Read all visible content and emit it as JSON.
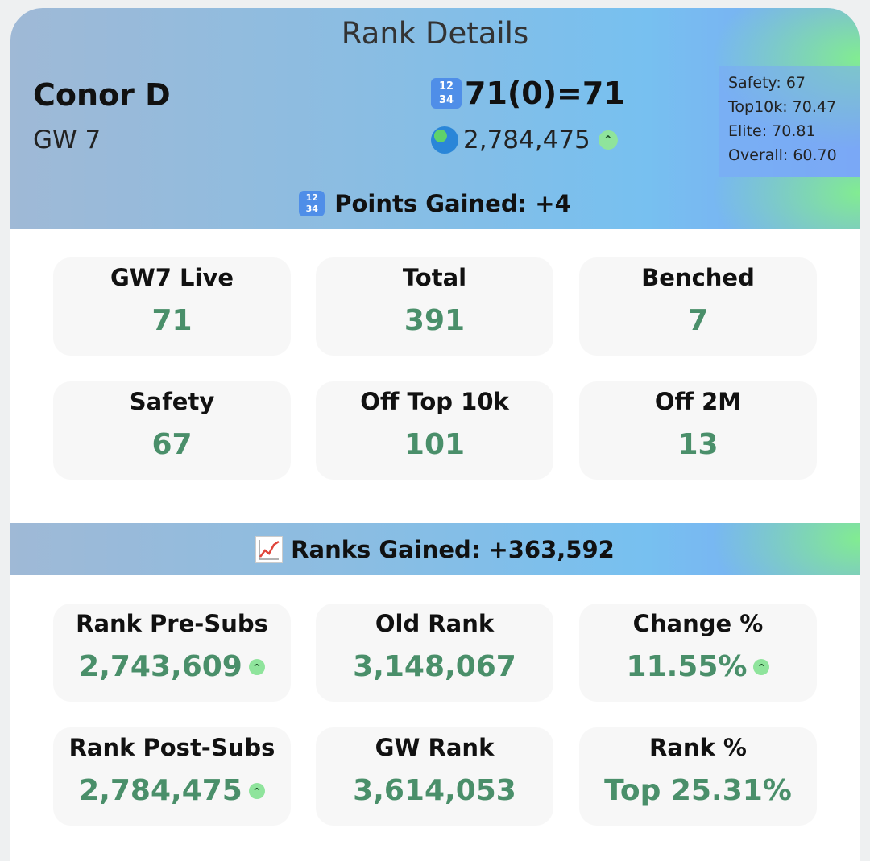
{
  "header": {
    "title": "Rank Details",
    "manager_name": "Conor D",
    "gameweek": "GW 7",
    "score": "71(0)=71",
    "overall_rank": "2,784,475",
    "thresholds": [
      {
        "label": "Safety: 67"
      },
      {
        "label": "Top10k: 70.47"
      },
      {
        "label": "Elite: 70.81"
      },
      {
        "label": "Overall: 60.70"
      }
    ]
  },
  "points_bar": {
    "label": "Points Gained: +4"
  },
  "points_tiles": [
    {
      "label": "GW7 Live",
      "value": "71"
    },
    {
      "label": "Total",
      "value": "391"
    },
    {
      "label": "Benched",
      "value": "7"
    },
    {
      "label": "Safety",
      "value": "67"
    },
    {
      "label": "Off Top 10k",
      "value": "101"
    },
    {
      "label": "Off 2M",
      "value": "13"
    }
  ],
  "ranks_bar": {
    "label": "Ranks Gained: +363,592"
  },
  "rank_tiles": [
    {
      "label": "Rank Pre-Subs",
      "value": "2,743,609"
    },
    {
      "label": "Old Rank",
      "value": "3,148,067"
    },
    {
      "label": "Change %",
      "value": "11.55%"
    },
    {
      "label": "Rank Post-Subs",
      "value": "2,784,475"
    },
    {
      "label": "GW Rank",
      "value": "3,614,053"
    },
    {
      "label": "Rank %",
      "value": "Top 25.31%"
    }
  ],
  "icons": {
    "score": "numbers-emoji-icon",
    "overall_rank": "globe-emoji-icon",
    "trend": "chevron-up-icon",
    "ranks": "chart-increasing-icon"
  },
  "colors": {
    "value_green": "#4a8f6a",
    "badge_green": "#8fe49c"
  }
}
